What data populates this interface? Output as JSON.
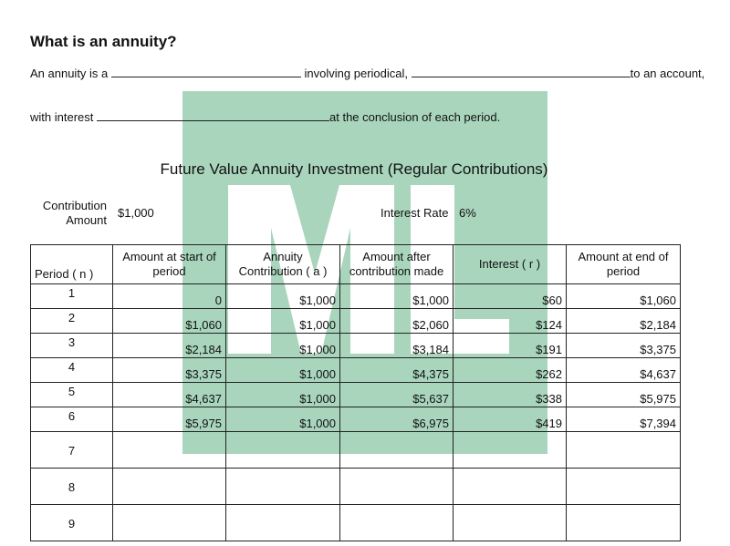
{
  "heading": "What is an annuity?",
  "line1": {
    "a": "An annuity is a",
    "b": "involving periodical,",
    "c": "to an account,"
  },
  "line2": {
    "a": "with interest",
    "b": "at the conclusion of each period."
  },
  "subtitle": "Future Value Annuity Investment (Regular Contributions)",
  "contribution": {
    "label1": "Contribution",
    "label2": "Amount",
    "value": "$1,000"
  },
  "interest": {
    "label": "Interest Rate",
    "value": "6%"
  },
  "watermark": {
    "text": "ML",
    "color": "#a9d5bd"
  },
  "table": {
    "headers": [
      "Period ( n )",
      "Amount at start of period",
      "Annuity Contribution ( a )",
      "Amount after contribution made",
      "Interest ( r )",
      "Amount at end of period"
    ],
    "rows": [
      [
        "1",
        "0",
        "$1,000",
        "$1,000",
        "$60",
        "$1,060"
      ],
      [
        "2",
        "$1,060",
        "$1,000",
        "$2,060",
        "$124",
        "$2,184"
      ],
      [
        "3",
        "$2,184",
        "$1,000",
        "$3,184",
        "$191",
        "$3,375"
      ],
      [
        "4",
        "$3,375",
        "$1,000",
        "$4,375",
        "$262",
        "$4,637"
      ],
      [
        "5",
        "$4,637",
        "$1,000",
        "$5,637",
        "$338",
        "$5,975"
      ],
      [
        "6",
        "$5,975",
        "$1,000",
        "$6,975",
        "$419",
        "$7,394"
      ],
      [
        "7",
        "",
        "",
        "",
        "",
        ""
      ],
      [
        "8",
        "",
        "",
        "",
        "",
        ""
      ],
      [
        "9",
        "",
        "",
        "",
        "",
        ""
      ]
    ]
  }
}
